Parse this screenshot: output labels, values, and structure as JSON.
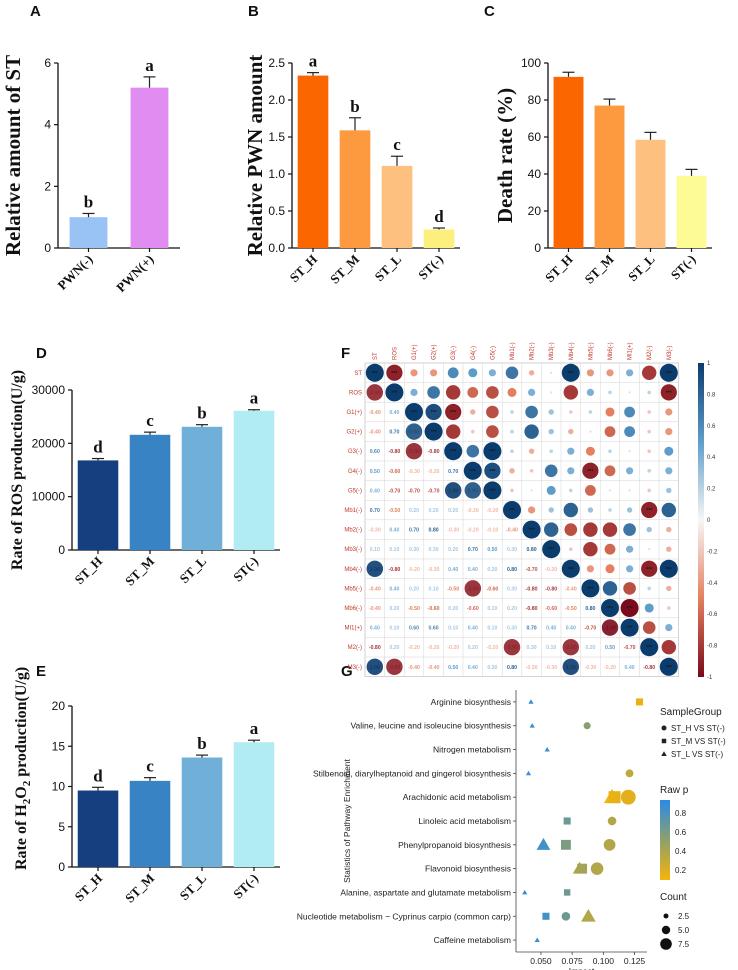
{
  "panels": {
    "A": {
      "letter": "A",
      "ylabel": "Relative amount of ST",
      "categories": [
        "PWN(-)",
        "PWN(+)"
      ],
      "values": [
        1.0,
        5.2
      ],
      "errors": [
        0.12,
        0.35
      ],
      "colors": [
        "#99c2f5",
        "#e08cf0"
      ],
      "sig": [
        "b",
        "a"
      ],
      "ylim": [
        0,
        6
      ],
      "yticks": [
        0,
        2,
        4,
        6
      ]
    },
    "B": {
      "letter": "B",
      "ylabel": "Relative PWN amount",
      "categories": [
        "ST_H",
        "ST_M",
        "ST_L",
        "ST(-)"
      ],
      "values": [
        2.33,
        1.59,
        1.11,
        0.25
      ],
      "errors": [
        0.04,
        0.17,
        0.13,
        0.02
      ],
      "colors": [
        "#fb6600",
        "#fd9a40",
        "#fdc07e",
        "#fcef7e"
      ],
      "sig": [
        "a",
        "b",
        "c",
        "d"
      ],
      "ylim": [
        0,
        2.5
      ],
      "yticks": [
        0.0,
        0.5,
        1.0,
        1.5,
        2.0,
        2.5
      ]
    },
    "C": {
      "letter": "C",
      "ylabel": "Death rate (%)",
      "categories": [
        "ST_H",
        "ST_M",
        "ST_L",
        "ST(-)"
      ],
      "values": [
        92.5,
        77,
        58.5,
        39
      ],
      "errors": [
        2.5,
        3.5,
        4,
        3.5
      ],
      "colors": [
        "#fb6600",
        "#fd9a40",
        "#fdc07e",
        "#fcfb96"
      ],
      "sig": [],
      "ylim": [
        0,
        100
      ],
      "yticks": [
        0,
        20,
        40,
        60,
        80,
        100
      ]
    },
    "D": {
      "letter": "D",
      "ylabel": "Rate of ROS production(U/g)",
      "categories": [
        "ST_H",
        "ST_M",
        "ST_L",
        "ST(-)"
      ],
      "values": [
        16800,
        21600,
        23100,
        26100
      ],
      "errors": [
        350,
        500,
        400,
        200
      ],
      "colors": [
        "#163f7f",
        "#3883c3",
        "#6fafd8",
        "#b1ecf2"
      ],
      "sig": [
        "d",
        "c",
        "b",
        "a"
      ],
      "ylim": [
        0,
        30000
      ],
      "yticks": [
        0,
        10000,
        20000,
        30000
      ]
    },
    "E": {
      "letter": "E",
      "ylabel_main": "Rate of H",
      "ylabel_sub1": "2",
      "ylabel_mid": "O",
      "ylabel_sub2": "2",
      "ylabel_end": " production(U/g)",
      "categories": [
        "ST_H",
        "ST_M",
        "ST_L",
        "ST(-)"
      ],
      "values": [
        9.5,
        10.7,
        13.6,
        15.5
      ],
      "errors": [
        0.4,
        0.4,
        0.3,
        0.25
      ],
      "colors": [
        "#163f7f",
        "#3883c3",
        "#6fafd8",
        "#b1ecf2"
      ],
      "sig": [
        "d",
        "c",
        "b",
        "a"
      ],
      "ylim": [
        0,
        20
      ],
      "yticks": [
        0,
        5,
        10,
        15,
        20
      ]
    }
  },
  "F": {
    "letter": "F",
    "labels": [
      "ST",
      "ROS",
      "G1(+)",
      "G2(+)",
      "G3(-)",
      "G4(-)",
      "G5(-)",
      "Mb1(-)",
      "Mb2(-)",
      "Mb3(-)",
      "Mb4(-)",
      "Mb5(-)",
      "Mb6(-)",
      "MI1(+)",
      "M2(-)",
      "M3(-)"
    ],
    "matrix": [
      [
        1,
        -0.9,
        -0.4,
        -0.4,
        0.6,
        0.5,
        0.4,
        0.7,
        -0.3,
        0.1,
        1.0,
        -0.4,
        -0.4,
        0.4,
        -0.8,
        1.0
      ],
      [
        -0.9,
        1,
        0.4,
        0.7,
        -0.8,
        -0.6,
        -0.7,
        -0.5,
        0.4,
        0.1,
        -0.8,
        0.4,
        0.2,
        0.1,
        0.2,
        -0.9
      ],
      [
        -0.4,
        0.4,
        1,
        0.9,
        -0.9,
        -0.3,
        -0.7,
        0.2,
        0.7,
        0.3,
        -0.2,
        0.2,
        -0.5,
        0.6,
        -0.2,
        -0.4
      ],
      [
        -0.4,
        0.7,
        0.9,
        1,
        -0.8,
        -0.2,
        -0.7,
        0.2,
        0.8,
        0.3,
        -0.3,
        0.1,
        -0.6,
        0.6,
        -0.2,
        -0.4
      ],
      [
        0.6,
        -0.8,
        -0.9,
        -0.8,
        1,
        0.7,
        1.0,
        0.2,
        -0.3,
        0.2,
        0.4,
        -0.5,
        0.2,
        0.1,
        -0.2,
        0.5
      ],
      [
        0.5,
        -0.6,
        -0.3,
        -0.2,
        0.7,
        1,
        0.9,
        -0.3,
        -0.2,
        0.7,
        0.4,
        -0.9,
        -0.6,
        0.4,
        0.2,
        0.4
      ],
      [
        0.4,
        -0.7,
        -0.7,
        -0.7,
        1.0,
        0.9,
        1,
        -0.2,
        -0.1,
        0.5,
        0.2,
        -0.6,
        0.1,
        0.1,
        -0.2,
        0.3
      ],
      [
        0.7,
        -0.5,
        0.2,
        0.2,
        0.2,
        -0.3,
        -0.2,
        1,
        -0.4,
        0.3,
        0.8,
        0.3,
        0.2,
        0.3,
        -0.9,
        0.8
      ],
      [
        -0.3,
        0.4,
        0.7,
        0.8,
        -0.3,
        -0.2,
        -0.1,
        -0.4,
        1,
        0.8,
        -0.7,
        -0.8,
        -0.8,
        0.7,
        0.3,
        -0.3
      ],
      [
        0.1,
        0.1,
        0.3,
        0.3,
        0.2,
        0.7,
        0.5,
        0.3,
        0.8,
        1,
        -0.2,
        -0.8,
        -0.6,
        0.4,
        0.1,
        -0.3
      ],
      [
        1.0,
        -0.8,
        -0.2,
        -0.3,
        0.4,
        0.4,
        0.2,
        0.8,
        -0.7,
        -0.2,
        1,
        -0.4,
        -0.5,
        0.4,
        -0.9,
        1.0
      ],
      [
        -0.4,
        0.4,
        0.2,
        0.1,
        -0.5,
        -0.9,
        -0.6,
        0.3,
        -0.8,
        -0.8,
        -0.4,
        1,
        0.8,
        -0.7,
        0.2,
        -0.3
      ],
      [
        -0.4,
        0.2,
        -0.5,
        -0.6,
        0.2,
        -0.6,
        0.1,
        0.2,
        -0.8,
        -0.6,
        -0.5,
        0.8,
        1,
        -1.0,
        0.5,
        -0.2
      ],
      [
        0.4,
        0.1,
        0.6,
        0.6,
        0.1,
        0.4,
        0.1,
        0.3,
        0.7,
        0.4,
        0.4,
        -0.7,
        -1.0,
        1,
        -0.7,
        0.4
      ],
      [
        -0.8,
        0.2,
        -0.2,
        -0.2,
        -0.2,
        0.2,
        -0.2,
        -0.9,
        0.3,
        0.1,
        -0.9,
        0.2,
        0.5,
        -0.7,
        1,
        -0.8
      ],
      [
        1.0,
        -0.9,
        -0.4,
        -0.4,
        0.5,
        0.4,
        0.3,
        0.8,
        -0.3,
        -0.3,
        1.0,
        -0.3,
        -0.2,
        0.4,
        -0.8,
        1
      ]
    ],
    "colorbar_ticks": [
      "1",
      "0.8",
      "0.6",
      "0.4",
      "0.2",
      "0",
      "-0.2",
      "-0.4",
      "-0.6",
      "-0.8",
      "-1"
    ],
    "star_text": "***"
  },
  "G": {
    "letter": "G",
    "ylabel": "Statistics of Pathway Enrichment",
    "xlabel": "Impact",
    "xticks": [
      0.05,
      0.075,
      0.1,
      0.125
    ],
    "xtick_labels": [
      "0.050",
      "0.075",
      "0.100",
      "0.125"
    ],
    "xlim": [
      0.03,
      0.135
    ],
    "pathways": [
      "Arginine biosynthesis",
      "Valine, leucine and isoleucine biosynthesis",
      "Nitrogen metabolism",
      "Stilbenoid, diarylheptanoid and gingerol biosynthesis",
      "Arachidonic acid metabolism",
      "Linoleic acid metabolism",
      "Phenylpropanoid biosynthesis",
      "Flavonoid biosynthesis",
      "Alanine, aspartate and glutamate metabolism",
      "Nucleotide metabolism − Cyprinus carpio (common carp)",
      "Caffeine metabolism"
    ],
    "points": [
      {
        "path": 0,
        "group": "ST_L",
        "impact": 0.042,
        "p": 0.85,
        "count": 1.5
      },
      {
        "path": 0,
        "group": "ST_M",
        "impact": 0.129,
        "p": 0.18,
        "count": 3.5
      },
      {
        "path": 1,
        "group": "ST_L",
        "impact": 0.043,
        "p": 0.85,
        "count": 1.5
      },
      {
        "path": 1,
        "group": "ST_H",
        "impact": 0.087,
        "p": 0.55,
        "count": 3.0
      },
      {
        "path": 2,
        "group": "ST_L",
        "impact": 0.055,
        "p": 0.85,
        "count": 1.5
      },
      {
        "path": 3,
        "group": "ST_L",
        "impact": 0.04,
        "p": 0.85,
        "count": 1.5
      },
      {
        "path": 3,
        "group": "ST_H",
        "impact": 0.121,
        "p": 0.35,
        "count": 3.5
      },
      {
        "path": 4,
        "group": "ST_L",
        "impact": 0.107,
        "p": 0.15,
        "count": 8.0
      },
      {
        "path": 4,
        "group": "ST_M",
        "impact": 0.109,
        "p": 0.2,
        "count": 7.0
      },
      {
        "path": 4,
        "group": "ST_H",
        "impact": 0.12,
        "p": 0.22,
        "count": 8.0
      },
      {
        "path": 5,
        "group": "ST_M",
        "impact": 0.071,
        "p": 0.65,
        "count": 3.5
      },
      {
        "path": 5,
        "group": "ST_H",
        "impact": 0.107,
        "p": 0.4,
        "count": 4.0
      },
      {
        "path": 6,
        "group": "ST_L",
        "impact": 0.052,
        "p": 0.8,
        "count": 6.5
      },
      {
        "path": 6,
        "group": "ST_M",
        "impact": 0.07,
        "p": 0.6,
        "count": 5.5
      },
      {
        "path": 6,
        "group": "ST_H",
        "impact": 0.105,
        "p": 0.4,
        "count": 6.0
      },
      {
        "path": 7,
        "group": "ST_L",
        "impact": 0.081,
        "p": 0.4,
        "count": 6.5
      },
      {
        "path": 7,
        "group": "ST_M",
        "impact": 0.083,
        "p": 0.45,
        "count": 5.5
      },
      {
        "path": 7,
        "group": "ST_H",
        "impact": 0.095,
        "p": 0.4,
        "count": 6.5
      },
      {
        "path": 8,
        "group": "ST_L",
        "impact": 0.037,
        "p": 0.85,
        "count": 1.5
      },
      {
        "path": 8,
        "group": "ST_M",
        "impact": 0.071,
        "p": 0.65,
        "count": 3.0
      },
      {
        "path": 9,
        "group": "ST_M",
        "impact": 0.054,
        "p": 0.8,
        "count": 3.5
      },
      {
        "path": 9,
        "group": "ST_H",
        "impact": 0.07,
        "p": 0.65,
        "count": 4.0
      },
      {
        "path": 9,
        "group": "ST_L",
        "impact": 0.088,
        "p": 0.4,
        "count": 7.0
      },
      {
        "path": 10,
        "group": "ST_L",
        "impact": 0.047,
        "p": 0.85,
        "count": 1.5
      }
    ],
    "legend": {
      "group_title": "SampleGroup",
      "groups": [
        {
          "key": "ST_H",
          "label": "ST_H VS ST(-)",
          "shape": "circle"
        },
        {
          "key": "ST_M",
          "label": "ST_M VS ST(-)",
          "shape": "square"
        },
        {
          "key": "ST_L",
          "label": "ST_L VS ST(-)",
          "shape": "triangle"
        }
      ],
      "rawp_title": "Raw p",
      "rawp_ticks": [
        "0.8",
        "0.6",
        "0.4",
        "0.2"
      ],
      "count_title": "Count",
      "count_items": [
        "2.5",
        "5.0",
        "7.5"
      ]
    }
  }
}
